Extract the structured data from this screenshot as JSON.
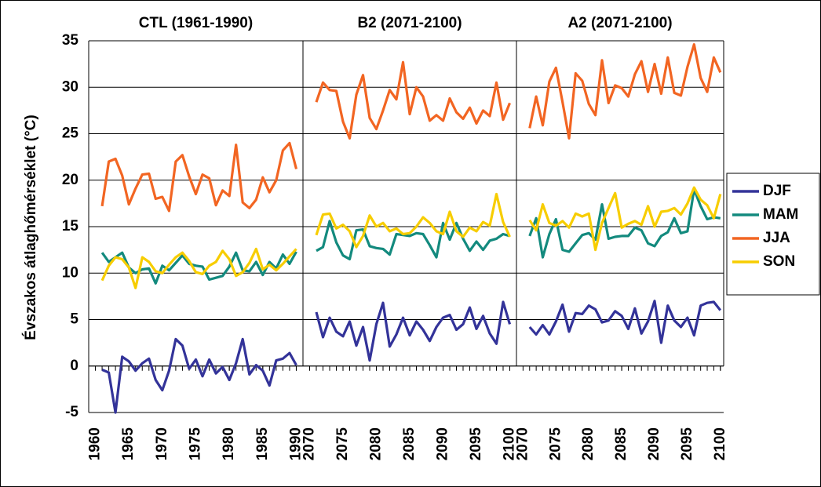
{
  "chart_data": {
    "type": "line",
    "ylabel": "Évszakos átlaghőmérséklet (°C)",
    "ylim": [
      -5,
      35
    ],
    "yticks": [
      -5,
      0,
      5,
      10,
      15,
      20,
      25,
      30,
      35
    ],
    "grid": true,
    "legend": "right",
    "series": [
      {
        "name": "DJF",
        "color": "#333399"
      },
      {
        "name": "MAM",
        "color": "#138a7e"
      },
      {
        "name": "JJA",
        "color": "#f26522"
      },
      {
        "name": "SON",
        "color": "#f7cd00"
      }
    ],
    "panels": [
      {
        "title": "CTL (1961-1990)",
        "xlim": [
          1959,
          1991
        ],
        "xticks": [
          1960,
          1965,
          1970,
          1975,
          1980,
          1985,
          1990
        ],
        "x": [
          1961,
          1962,
          1963,
          1964,
          1965,
          1966,
          1967,
          1968,
          1969,
          1970,
          1971,
          1972,
          1973,
          1974,
          1975,
          1976,
          1977,
          1978,
          1979,
          1980,
          1981,
          1982,
          1983,
          1984,
          1985,
          1986,
          1987,
          1988,
          1989,
          1990
        ],
        "series": [
          {
            "values": [
              -0.4,
              -0.7,
              -5,
              1.0,
              0.5,
              -0.5,
              0.3,
              0.8,
              -1.5,
              -2.6,
              -0.5,
              2.9,
              2.2,
              -0.3,
              0.7,
              -1.1,
              0.7,
              -0.8,
              -0.1,
              -1.5,
              0.3,
              2.9,
              -0.9,
              0.1,
              -0.5,
              -2.1,
              0.6,
              0.8,
              1.4,
              0.1
            ]
          },
          {
            "values": [
              12.2,
              11.2,
              11.7,
              12.2,
              10.6,
              10.0,
              10.4,
              10.5,
              8.9,
              10.8,
              10.3,
              11.1,
              11.9,
              11.0,
              10.8,
              10.7,
              9.3,
              9.5,
              9.7,
              10.7,
              12.2,
              10.3,
              10.2,
              11.2,
              9.8,
              11.2,
              10.5,
              12.0,
              11.0,
              12.3
            ]
          },
          {
            "values": [
              17.2,
              22.0,
              22.3,
              20.5,
              17.4,
              19.1,
              20.6,
              20.7,
              18.0,
              18.2,
              16.7,
              22.0,
              22.7,
              20.4,
              18.5,
              20.6,
              20.2,
              17.3,
              18.9,
              18.3,
              23.8,
              17.6,
              17.0,
              17.9,
              20.3,
              18.7,
              20.0,
              23.2,
              24.0,
              21.2
            ]
          },
          {
            "values": [
              9.2,
              10.8,
              11.7,
              11.5,
              10.6,
              8.4,
              11.7,
              11.2,
              10.2,
              10.0,
              10.9,
              11.7,
              12.2,
              11.3,
              10.1,
              9.9,
              10.8,
              11.2,
              12.4,
              11.5,
              9.7,
              10.1,
              11.1,
              12.6,
              10.4,
              10.9,
              10.3,
              11.0,
              11.8,
              12.6
            ]
          }
        ]
      },
      {
        "title": "B2 (2071-2100)",
        "xlim": [
          2069,
          2101
        ],
        "xticks": [
          2070,
          2075,
          2080,
          2085,
          2090,
          2095,
          2100
        ],
        "x": [
          2071,
          2072,
          2073,
          2074,
          2075,
          2076,
          2077,
          2078,
          2079,
          2080,
          2081,
          2082,
          2083,
          2084,
          2085,
          2086,
          2087,
          2088,
          2089,
          2090,
          2091,
          2092,
          2093,
          2094,
          2095,
          2096,
          2097,
          2098,
          2099,
          2100
        ],
        "series": [
          {
            "values": [
              5.8,
              3.1,
              5.2,
              3.7,
              3.2,
              4.8,
              2.2,
              4.2,
              0.6,
              4.5,
              6.8,
              2.1,
              3.4,
              5.2,
              3.3,
              4.8,
              3.9,
              2.7,
              4.2,
              5.2,
              5.5,
              3.9,
              4.5,
              6.3,
              4.0,
              5.4,
              3.5,
              2.4,
              6.9,
              4.5
            ]
          },
          {
            "values": [
              12.4,
              12.8,
              15.6,
              13.3,
              11.9,
              11.5,
              14.6,
              14.7,
              12.9,
              12.7,
              12.6,
              12.0,
              14.2,
              14.1,
              14.0,
              14.3,
              14.2,
              13.0,
              11.7,
              15.4,
              13.6,
              15.4,
              13.7,
              12.4,
              13.4,
              12.5,
              13.5,
              13.7,
              14.2,
              14.0
            ]
          },
          {
            "values": [
              28.4,
              30.5,
              29.7,
              29.6,
              26.3,
              24.5,
              29.2,
              31.3,
              26.7,
              25.5,
              27.5,
              29.7,
              28.7,
              32.7,
              27.1,
              30.0,
              29.0,
              26.4,
              27.0,
              26.4,
              28.8,
              27.3,
              26.6,
              27.8,
              26.1,
              27.5,
              26.9,
              30.5,
              26.5,
              28.3
            ]
          },
          {
            "values": [
              14.1,
              16.3,
              16.4,
              14.8,
              15.2,
              14.5,
              12.8,
              14.0,
              16.2,
              15.0,
              15.4,
              14.5,
              14.8,
              14.2,
              14.3,
              15.0,
              16.0,
              15.4,
              14.5,
              14.2,
              16.6,
              14.5,
              13.9,
              14.9,
              14.5,
              15.5,
              15.1,
              18.5,
              15.5,
              13.9
            ]
          }
        ]
      },
      {
        "title": "A2 (2071-2100)",
        "xlim": [
          2069,
          2100.5
        ],
        "xticks": [
          2070,
          2075,
          2080,
          2085,
          2090,
          2095,
          2100
        ],
        "x": [
          2071,
          2072,
          2073,
          2074,
          2075,
          2076,
          2077,
          2078,
          2079,
          2080,
          2081,
          2082,
          2083,
          2084,
          2085,
          2086,
          2087,
          2088,
          2089,
          2090,
          2091,
          2092,
          2093,
          2094,
          2095,
          2096,
          2097,
          2098,
          2099,
          2100
        ],
        "series": [
          {
            "values": [
              4.2,
              3.4,
              4.4,
              3.4,
              4.8,
              6.6,
              3.7,
              5.7,
              5.6,
              6.5,
              6.1,
              4.7,
              4.9,
              5.9,
              5.4,
              4.0,
              6.2,
              3.5,
              4.8,
              7.0,
              2.5,
              6.5,
              4.9,
              4.2,
              5.2,
              3.3,
              6.5,
              6.8,
              6.9,
              6.0
            ]
          },
          {
            "values": [
              14.0,
              15.9,
              11.7,
              14.2,
              15.8,
              12.5,
              12.3,
              13.2,
              14.1,
              14.3,
              13.6,
              17.4,
              13.7,
              13.9,
              14.0,
              14.0,
              14.9,
              14.6,
              13.2,
              12.9,
              14.0,
              14.4,
              15.9,
              14.3,
              14.5,
              19.0,
              17.2,
              15.8,
              16.0,
              15.9
            ]
          },
          {
            "values": [
              25.6,
              29.0,
              25.9,
              30.6,
              32.1,
              28.4,
              24.5,
              31.5,
              30.7,
              28.2,
              27.0,
              32.9,
              28.3,
              30.2,
              29.9,
              29.0,
              31.4,
              32.8,
              29.5,
              32.5,
              29.3,
              33.2,
              29.4,
              29.1,
              32.2,
              34.6,
              31.0,
              29.5,
              33.2,
              31.6
            ]
          },
          {
            "values": [
              15.7,
              14.6,
              17.4,
              15.4,
              15.1,
              15.6,
              14.9,
              16.4,
              16.1,
              16.4,
              12.5,
              15.4,
              17.0,
              18.6,
              14.9,
              15.3,
              15.6,
              15.2,
              17.2,
              15.0,
              16.6,
              16.7,
              17.0,
              16.3,
              17.5,
              19.2,
              17.9,
              17.3,
              15.9,
              18.5
            ]
          }
        ]
      }
    ]
  }
}
